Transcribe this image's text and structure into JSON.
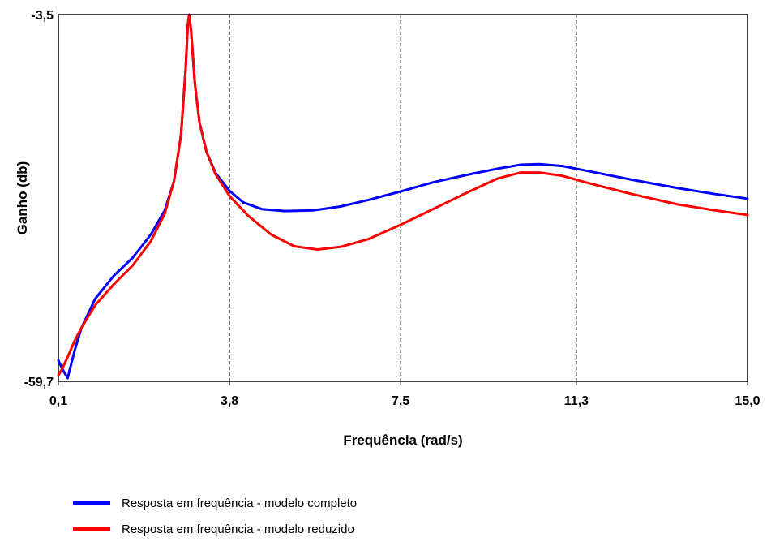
{
  "chart_data": {
    "type": "line",
    "xlabel": "Frequência (rad/s)",
    "ylabel": "Ganho (db)",
    "xlim": [
      0.1,
      15.0
    ],
    "ylim": [
      -59.7,
      -3.5
    ],
    "x_ticks": [
      "0,1",
      "3,8",
      "7,5",
      "11,3",
      "15,0"
    ],
    "y_ticks": [
      "-3,5",
      "-59,7"
    ],
    "x_tick_values": [
      0.1,
      3.8,
      7.5,
      11.3,
      15.0
    ],
    "y_tick_values": [
      -3.5,
      -59.7
    ],
    "grid": "vertical dashed",
    "series": [
      {
        "name": "Resposta em frequência - modelo completo",
        "color": "#0000ff",
        "points": [
          [
            0.1,
            -56.5
          ],
          [
            0.2,
            -58.0
          ],
          [
            0.3,
            -59.2
          ],
          [
            0.45,
            -55.0
          ],
          [
            0.6,
            -51.5
          ],
          [
            0.9,
            -47.0
          ],
          [
            1.3,
            -43.5
          ],
          [
            1.7,
            -40.8
          ],
          [
            2.1,
            -37.2
          ],
          [
            2.4,
            -33.5
          ],
          [
            2.6,
            -29.0
          ],
          [
            2.75,
            -22.0
          ],
          [
            2.85,
            -12.0
          ],
          [
            2.9,
            -5.0
          ],
          [
            2.93,
            -3.5
          ],
          [
            2.97,
            -6.0
          ],
          [
            3.05,
            -14.0
          ],
          [
            3.15,
            -20.0
          ],
          [
            3.3,
            -24.5
          ],
          [
            3.5,
            -27.8
          ],
          [
            3.8,
            -30.5
          ],
          [
            4.1,
            -32.3
          ],
          [
            4.5,
            -33.3
          ],
          [
            5.0,
            -33.6
          ],
          [
            5.6,
            -33.5
          ],
          [
            6.2,
            -32.9
          ],
          [
            6.8,
            -31.9
          ],
          [
            7.5,
            -30.6
          ],
          [
            8.2,
            -29.2
          ],
          [
            8.9,
            -28.1
          ],
          [
            9.6,
            -27.1
          ],
          [
            10.1,
            -26.5
          ],
          [
            10.5,
            -26.4
          ],
          [
            11.0,
            -26.7
          ],
          [
            11.5,
            -27.4
          ],
          [
            12.5,
            -28.8
          ],
          [
            13.5,
            -30.1
          ],
          [
            14.3,
            -31.0
          ],
          [
            15.0,
            -31.7
          ]
        ]
      },
      {
        "name": "Resposta em frequência - modelo reduzido",
        "color": "#ff0000",
        "points": [
          [
            0.1,
            -58.8
          ],
          [
            0.2,
            -57.5
          ],
          [
            0.3,
            -56.0
          ],
          [
            0.45,
            -53.5
          ],
          [
            0.6,
            -51.5
          ],
          [
            0.9,
            -48.0
          ],
          [
            1.3,
            -44.8
          ],
          [
            1.7,
            -42.0
          ],
          [
            2.1,
            -38.2
          ],
          [
            2.4,
            -34.0
          ],
          [
            2.6,
            -29.0
          ],
          [
            2.75,
            -22.0
          ],
          [
            2.85,
            -12.0
          ],
          [
            2.9,
            -5.0
          ],
          [
            2.93,
            -3.6
          ],
          [
            2.97,
            -6.0
          ],
          [
            3.05,
            -14.0
          ],
          [
            3.15,
            -20.0
          ],
          [
            3.3,
            -24.5
          ],
          [
            3.5,
            -28.0
          ],
          [
            3.8,
            -31.3
          ],
          [
            4.2,
            -34.3
          ],
          [
            4.7,
            -37.2
          ],
          [
            5.2,
            -39.0
          ],
          [
            5.7,
            -39.5
          ],
          [
            6.2,
            -39.1
          ],
          [
            6.8,
            -37.9
          ],
          [
            7.5,
            -35.7
          ],
          [
            8.2,
            -33.3
          ],
          [
            8.9,
            -30.9
          ],
          [
            9.6,
            -28.6
          ],
          [
            10.1,
            -27.7
          ],
          [
            10.5,
            -27.7
          ],
          [
            11.0,
            -28.2
          ],
          [
            11.5,
            -29.2
          ],
          [
            12.5,
            -31.0
          ],
          [
            13.5,
            -32.6
          ],
          [
            14.3,
            -33.5
          ],
          [
            15.0,
            -34.2
          ]
        ]
      }
    ],
    "legend_position": "bottom"
  }
}
